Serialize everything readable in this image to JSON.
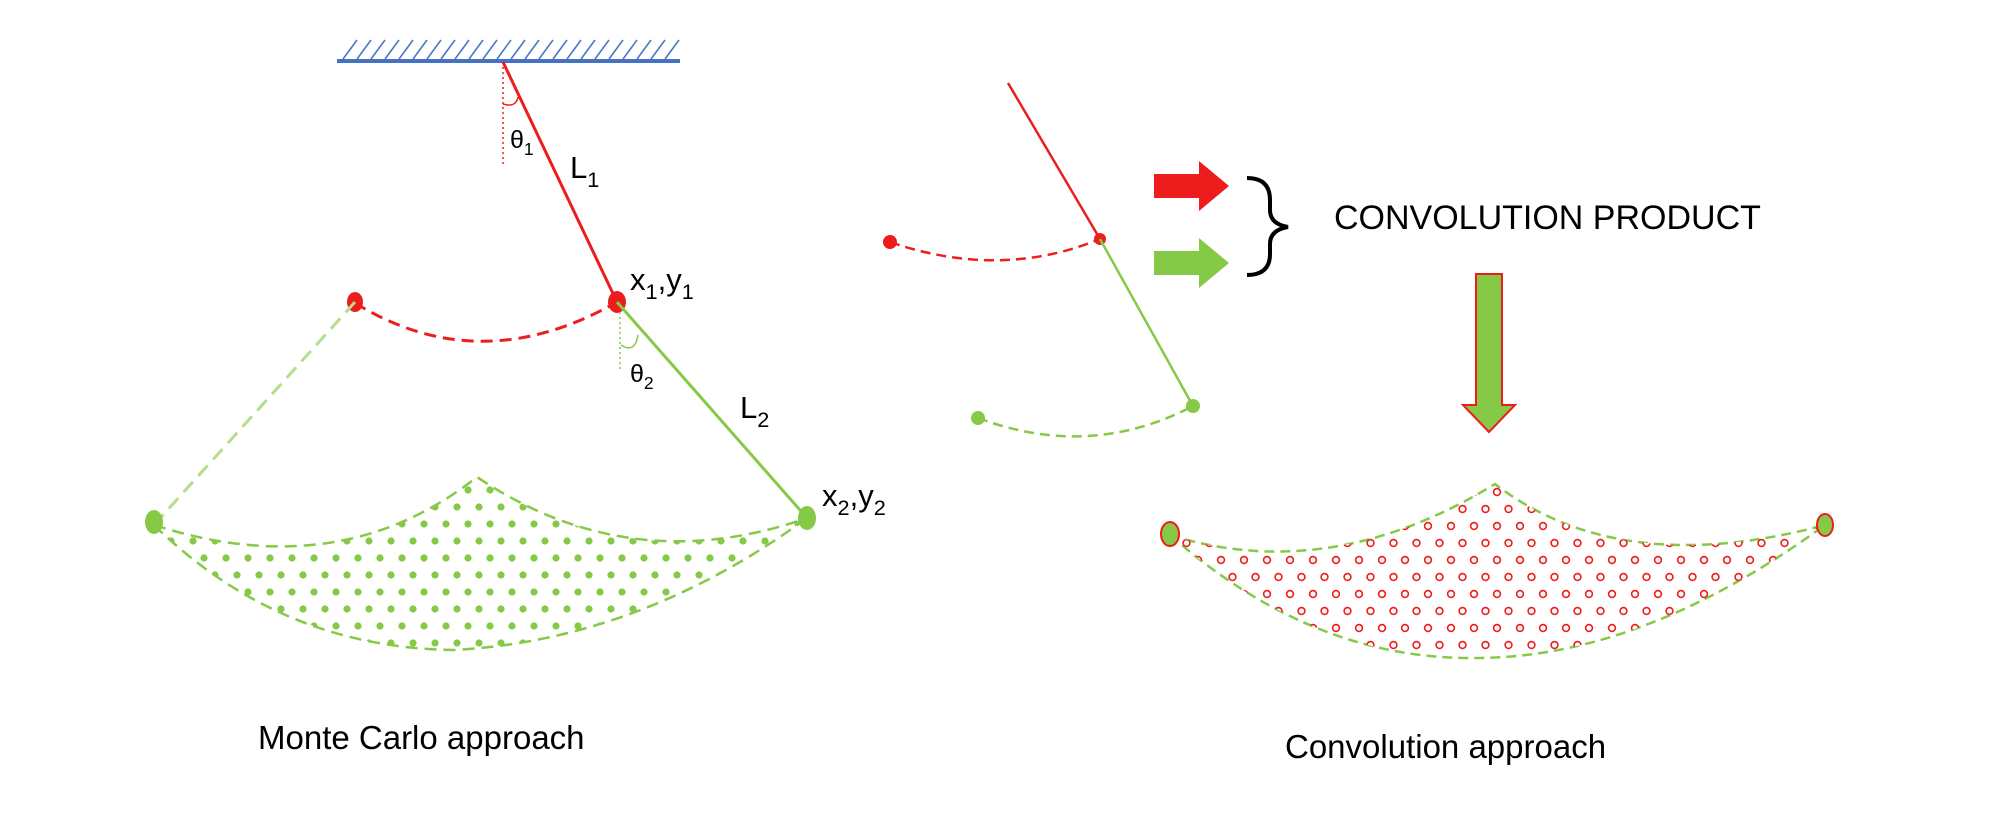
{
  "colors": {
    "red": "#ee1d1d",
    "green": "#86c947",
    "green_light": "#b5dd8e",
    "blue": "#4472c4",
    "black": "#000000"
  },
  "left_panel": {
    "caption": "Monte Carlo approach",
    "theta1": {
      "base": "θ",
      "sub": "1"
    },
    "theta2": {
      "base": "θ",
      "sub": "2"
    },
    "L1": {
      "base": "L",
      "sub": "1"
    },
    "L2": {
      "base": "L",
      "sub": "2"
    },
    "joint1": {
      "x": "x",
      "xsub": "1",
      "sep": ",",
      "y": "y",
      "ysub": "1"
    },
    "joint2": {
      "x": "x",
      "xsub": "2",
      "sep": ",",
      "y": "y",
      "ysub": "2"
    }
  },
  "right_panel": {
    "caption": "Convolution approach",
    "operation_label": "CONVOLUTION PRODUCT"
  }
}
